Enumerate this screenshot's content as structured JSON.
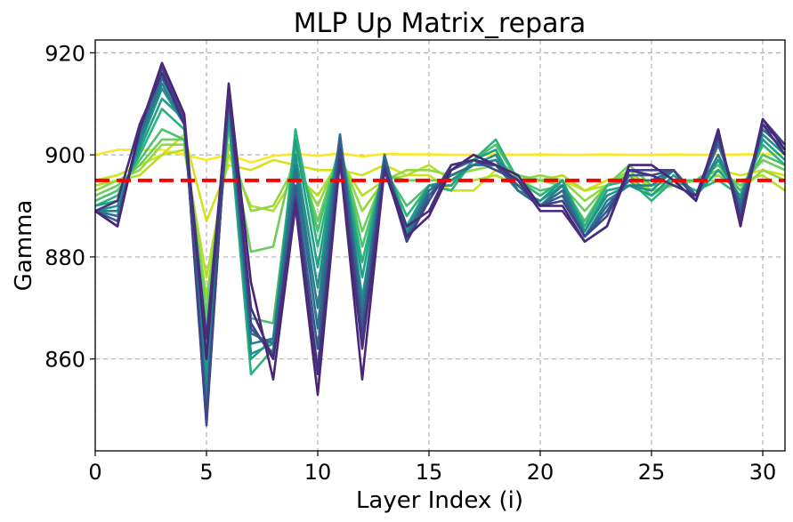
{
  "chart_data": {
    "type": "line",
    "title": "MLP Up Matrix_repara",
    "xlabel": "Layer Index (i)",
    "ylabel": "Gamma",
    "xlim": [
      0,
      31
    ],
    "ylim": [
      842,
      922.5
    ],
    "xticks": [
      0,
      5,
      10,
      15,
      20,
      25,
      30
    ],
    "yticks": [
      860,
      880,
      900,
      920
    ],
    "grid": true,
    "reference_line": {
      "y": 895,
      "color": "#ff0000",
      "style": "dashed"
    },
    "x": [
      0,
      1,
      2,
      3,
      4,
      5,
      6,
      7,
      8,
      9,
      10,
      11,
      12,
      13,
      14,
      15,
      16,
      17,
      18,
      19,
      20,
      21,
      22,
      23,
      24,
      25,
      26,
      27,
      28,
      29,
      30,
      31
    ],
    "series": [
      {
        "color": "#fde725",
        "values": [
          900,
          901,
          901,
          901,
          900,
          899,
          900,
          898.5,
          899.8,
          900.2,
          899.8,
          900.3,
          899.7,
          900.2,
          900.1,
          900.1,
          900.0,
          900.0,
          900.1,
          900.0,
          900.1,
          900.0,
          900.0,
          900.1,
          900.0,
          900.0,
          900.1,
          900.0,
          900.0,
          900.1,
          900.1,
          900.2
        ]
      },
      {
        "color": "#d2e21b",
        "values": [
          895,
          896,
          898,
          900,
          904,
          887,
          898,
          897,
          899,
          898,
          897,
          897,
          896,
          898,
          896,
          896,
          893,
          893,
          897,
          896,
          895,
          895,
          893,
          895,
          896,
          894,
          895,
          895,
          897,
          896,
          897,
          896
        ]
      },
      {
        "color": "#b5de2b",
        "values": [
          894,
          895,
          896,
          900,
          901,
          876,
          900,
          890,
          889,
          896,
          892,
          899,
          892,
          895,
          896,
          898,
          895,
          895,
          896,
          894,
          895,
          896,
          893,
          894,
          895,
          893,
          894,
          895,
          895,
          895,
          896,
          893
        ]
      },
      {
        "color": "#8fd744",
        "values": [
          893,
          895,
          897,
          902,
          902,
          872,
          902,
          889,
          890,
          898,
          890,
          900,
          889,
          895,
          897,
          897,
          896,
          897,
          898,
          895,
          896,
          895,
          891,
          894,
          897,
          893,
          894,
          895,
          896,
          893,
          897,
          895
        ]
      },
      {
        "color": "#6ccd5a",
        "values": [
          892,
          894,
          898,
          903,
          903,
          869,
          905,
          881,
          882,
          901,
          887,
          901,
          885,
          896,
          895,
          895,
          895,
          898,
          899,
          896,
          895,
          894,
          889,
          894,
          898,
          894,
          895,
          895,
          897,
          894,
          899,
          897
        ]
      },
      {
        "color": "#4ac16d",
        "values": [
          891,
          893,
          899,
          905,
          903,
          866,
          906,
          868,
          867,
          902,
          885,
          902,
          882,
          897,
          890,
          894,
          894,
          899,
          902,
          895,
          893,
          894,
          887,
          894,
          896,
          892,
          895,
          895,
          898,
          893,
          900,
          898
        ]
      },
      {
        "color": "#2db27d",
        "values": [
          890,
          892,
          900,
          909,
          905,
          862,
          907,
          857,
          862,
          905,
          882,
          902,
          879,
          898,
          888,
          894,
          893,
          899,
          903,
          895,
          892,
          895,
          886,
          894,
          895,
          891,
          895,
          893,
          895,
          892,
          902,
          898
        ]
      },
      {
        "color": "#1fa187",
        "values": [
          890,
          891,
          901,
          911,
          907,
          858,
          908,
          860,
          864,
          903,
          878,
          903,
          876,
          899,
          886,
          894,
          894,
          899,
          901,
          893,
          891,
          895,
          885,
          893,
          894,
          892,
          896,
          892,
          897,
          892,
          903,
          899
        ]
      },
      {
        "color": "#21918c",
        "values": [
          889,
          890,
          902,
          913,
          906,
          855,
          909,
          861,
          863,
          900,
          874,
          903,
          872,
          899,
          885,
          894,
          895,
          898,
          900,
          893,
          891,
          894,
          885,
          892,
          894,
          893,
          897,
          892,
          899,
          891,
          904,
          900
        ]
      },
      {
        "color": "#277f8e",
        "values": [
          889,
          889,
          903,
          914,
          906,
          852,
          910,
          863,
          864,
          898,
          870,
          904,
          870,
          900,
          884,
          893,
          896,
          898,
          899,
          893,
          890,
          894,
          884,
          891,
          894,
          894,
          897,
          892,
          900,
          891,
          905,
          901
        ]
      },
      {
        "color": "#2e6e8e",
        "values": [
          889,
          888,
          904,
          915,
          907,
          850,
          911,
          865,
          863,
          897,
          866,
          904,
          868,
          900,
          884,
          893,
          896,
          898,
          898,
          893,
          890,
          893,
          884,
          890,
          895,
          895,
          897,
          892,
          902,
          890,
          905,
          901
        ]
      },
      {
        "color": "#365c8d",
        "values": [
          889,
          887,
          905,
          916,
          907,
          848,
          912,
          866,
          861,
          894,
          862,
          903,
          866,
          899,
          883,
          892,
          897,
          899,
          898,
          894,
          890,
          892,
          884,
          889,
          896,
          896,
          897,
          891,
          903,
          889,
          906,
          902
        ]
      },
      {
        "color": "#3f4788",
        "values": [
          889,
          886,
          905,
          917,
          907,
          847,
          913,
          867,
          860,
          892,
          858,
          901,
          864,
          898,
          883,
          891,
          898,
          899,
          897,
          895,
          890,
          891,
          884,
          888,
          897,
          897,
          897,
          891,
          904,
          888,
          907,
          902
        ]
      },
      {
        "color": "#482576",
        "values": [
          889,
          886,
          905,
          918,
          908,
          860,
          914,
          875,
          856,
          890,
          853,
          899,
          856,
          897,
          884,
          888,
          897,
          900,
          898,
          896,
          890,
          890,
          883,
          886,
          898,
          898,
          895,
          891,
          905,
          886,
          907,
          901
        ]
      },
      {
        "color": "#46307e",
        "values": [
          889,
          891,
          906,
          916,
          906,
          864,
          912,
          870,
          860,
          891,
          857,
          899,
          862,
          897,
          886,
          889,
          898,
          899,
          898,
          895,
          889,
          889,
          883,
          886,
          897,
          896,
          894,
          892,
          904,
          887,
          906,
          900
        ]
      }
    ]
  }
}
